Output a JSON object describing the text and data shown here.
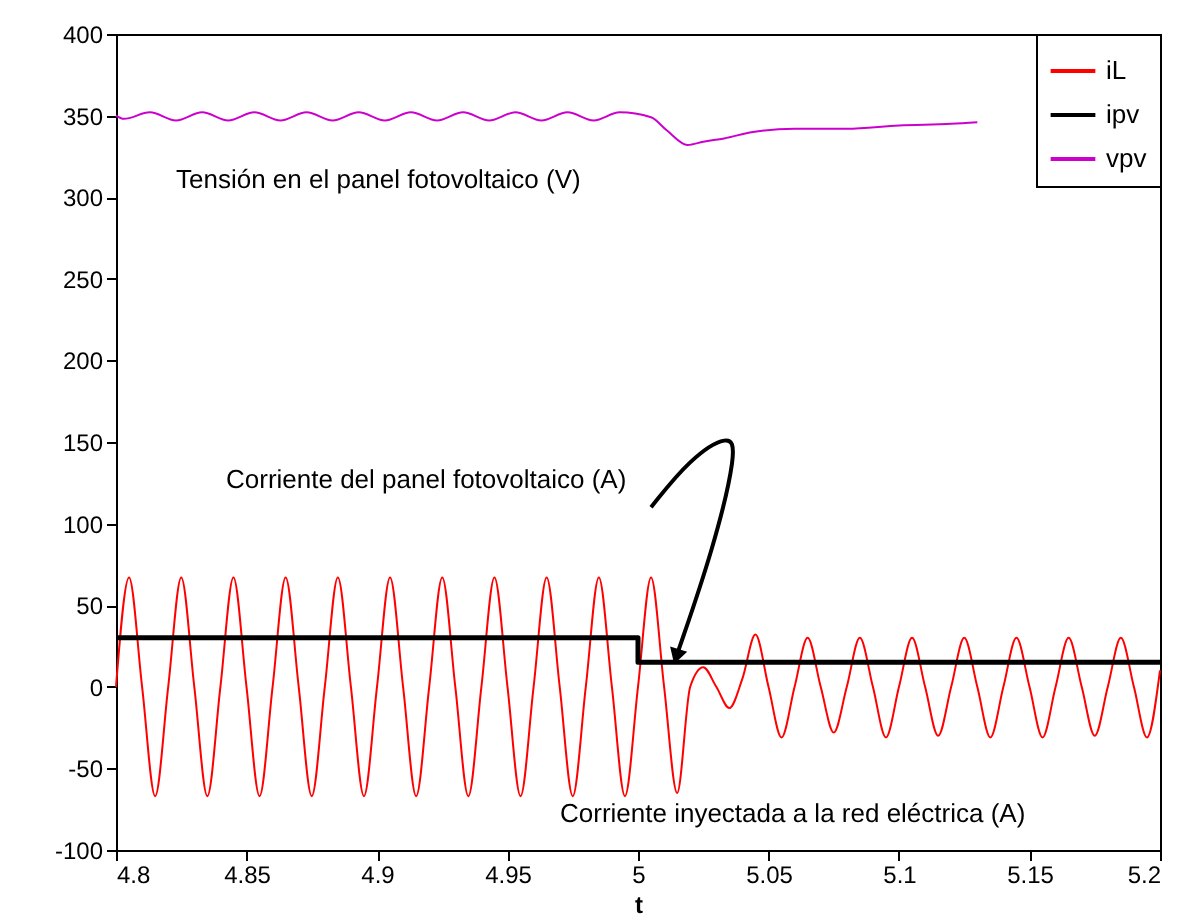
{
  "chart_data": {
    "type": "line",
    "xlabel": "t",
    "xlim": [
      4.8,
      5.2
    ],
    "xticks": [
      4.8,
      4.85,
      4.9,
      4.95,
      5,
      5.05,
      5.1,
      5.15,
      5.2
    ],
    "ylim": [
      -100,
      400
    ],
    "yticks": [
      -100,
      -50,
      0,
      50,
      100,
      150,
      200,
      250,
      300,
      350,
      400
    ],
    "grid": false,
    "legend": "top right",
    "line_style": "solid",
    "marker": "none",
    "series": [
      {
        "name": "iL",
        "color": "#ff0000",
        "x": [
          4.8,
          4.805,
          4.81,
          4.815,
          4.82,
          4.825,
          4.83,
          4.835,
          4.84,
          4.845,
          4.85,
          4.855,
          4.86,
          4.865,
          4.87,
          4.875,
          4.88,
          4.885,
          4.89,
          4.895,
          4.9,
          4.905,
          4.91,
          4.915,
          4.92,
          4.925,
          4.93,
          4.935,
          4.94,
          4.945,
          4.95,
          4.955,
          4.96,
          4.965,
          4.97,
          4.975,
          4.98,
          4.985,
          4.99,
          4.995,
          5,
          5.005,
          5.01,
          5.015,
          5.02,
          5.025,
          5.03,
          5.035,
          5.04,
          5.045,
          5.05,
          5.055,
          5.06,
          5.065,
          5.07,
          5.075,
          5.08,
          5.085,
          5.09,
          5.095,
          5.1,
          5.105,
          5.11,
          5.115,
          5.12,
          5.125,
          5.13,
          5.135,
          5.14,
          5.145,
          5.15,
          5.155,
          5.16,
          5.165,
          5.17,
          5.175,
          5.18,
          5.185,
          5.19,
          5.195,
          5.2
        ],
        "values": [
          0,
          67,
          0,
          -67,
          0,
          67,
          0,
          -67,
          0,
          67,
          0,
          -67,
          0,
          67,
          0,
          -67,
          0,
          67,
          0,
          -67,
          0,
          67,
          0,
          -67,
          0,
          67,
          0,
          -67,
          0,
          67,
          0,
          -67,
          0,
          67,
          0,
          -67,
          0,
          67,
          0,
          -67,
          0,
          67,
          0,
          -65,
          0,
          12,
          0,
          -13,
          5,
          32,
          0,
          -31,
          0,
          30,
          0,
          -28,
          0,
          30,
          0,
          -31,
          0,
          30,
          0,
          -30,
          0,
          30,
          0,
          -31,
          0,
          30,
          0,
          -31,
          0,
          30,
          0,
          -30,
          0,
          30,
          0,
          -31,
          10
        ]
      },
      {
        "name": "ipv",
        "color": "#000000",
        "type": "step",
        "x": [
          4.8,
          5.0,
          5.2
        ],
        "values": [
          30,
          15,
          15
        ]
      },
      {
        "name": "vpv",
        "color": "#cc00cc",
        "x": [
          4.8,
          4.803,
          4.813,
          4.823,
          4.833,
          4.843,
          4.853,
          4.863,
          4.873,
          4.883,
          4.893,
          4.903,
          4.913,
          4.923,
          4.933,
          4.943,
          4.953,
          4.963,
          4.973,
          4.983,
          4.993,
          5.005,
          5.011,
          5.019,
          5.025,
          5.033,
          5.044,
          5.06,
          5.08,
          5.1,
          5.12,
          5.13
        ],
        "values": [
          350,
          348,
          352,
          347,
          352,
          347,
          352,
          347,
          352,
          347,
          352,
          347,
          352,
          347,
          352,
          347,
          352,
          347,
          352,
          347,
          352,
          349,
          341,
          332,
          334,
          336,
          340,
          342,
          342,
          344,
          345,
          346
        ]
      }
    ],
    "annotations": [
      "Tensión en el panel fotovoltaico (V)",
      {
        "text": "Corriente del panel fotovoltaico (A)",
        "x": 5.015,
        "y": 15
      },
      "Corriente inyectada a la red eléctrica (A)"
    ]
  }
}
